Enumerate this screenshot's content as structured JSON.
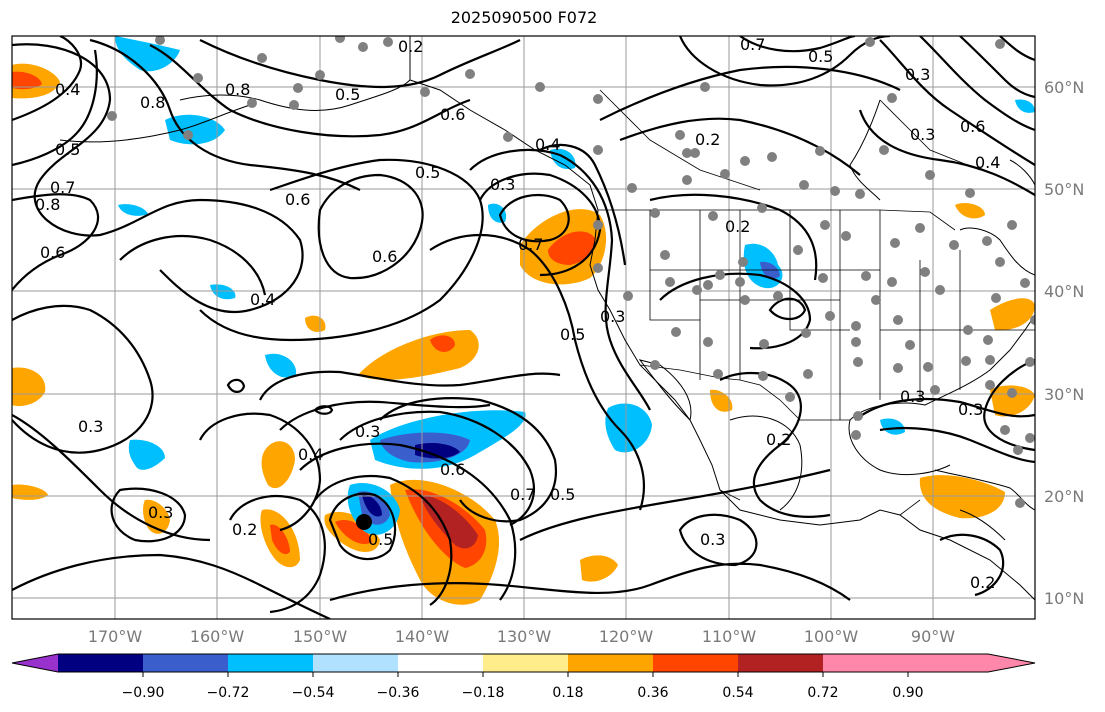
{
  "title": "2025090500 F072",
  "latitude_labels": [
    "60°N",
    "50°N",
    "40°N",
    "30°N",
    "20°N",
    "10°N"
  ],
  "longitude_labels": [
    "170°W",
    "160°W",
    "150°W",
    "140°W",
    "130°W",
    "120°W",
    "110°W",
    "100°W",
    "90°W"
  ],
  "colorbar": {
    "tick_labels": [
      "−0.90",
      "−0.72",
      "−0.54",
      "−0.36",
      "−0.18",
      "0.18",
      "0.36",
      "0.54",
      "0.72",
      "0.90"
    ],
    "colors": [
      "#9932cc",
      "#000080",
      "#3a5fcd",
      "#00bfff",
      "#b0e2ff",
      "#ffffff",
      "#ffec8b",
      "#ffa500",
      "#ff4500",
      "#b22222",
      "#ff88aa"
    ]
  },
  "contour_labels": [
    "0.2",
    "0.7",
    "0.5",
    "0.8",
    "0.4",
    "0.5",
    "0.6",
    "0.4",
    "0.2",
    "0.3",
    "0.6",
    "0.4",
    "0.5",
    "0.7",
    "0.8",
    "0.6",
    "0.6",
    "0.4",
    "0.6",
    "0.5",
    "0.2",
    "0.3",
    "0.5",
    "0.3",
    "0.3",
    "0.4",
    "0.6",
    "0.7",
    "0.5",
    "0.3",
    "0.2",
    "0.5",
    "0.2",
    "0.3",
    "0.3",
    "0.3",
    "0.2",
    "0.3",
    "0.3",
    "0.7",
    "0.8"
  ]
}
